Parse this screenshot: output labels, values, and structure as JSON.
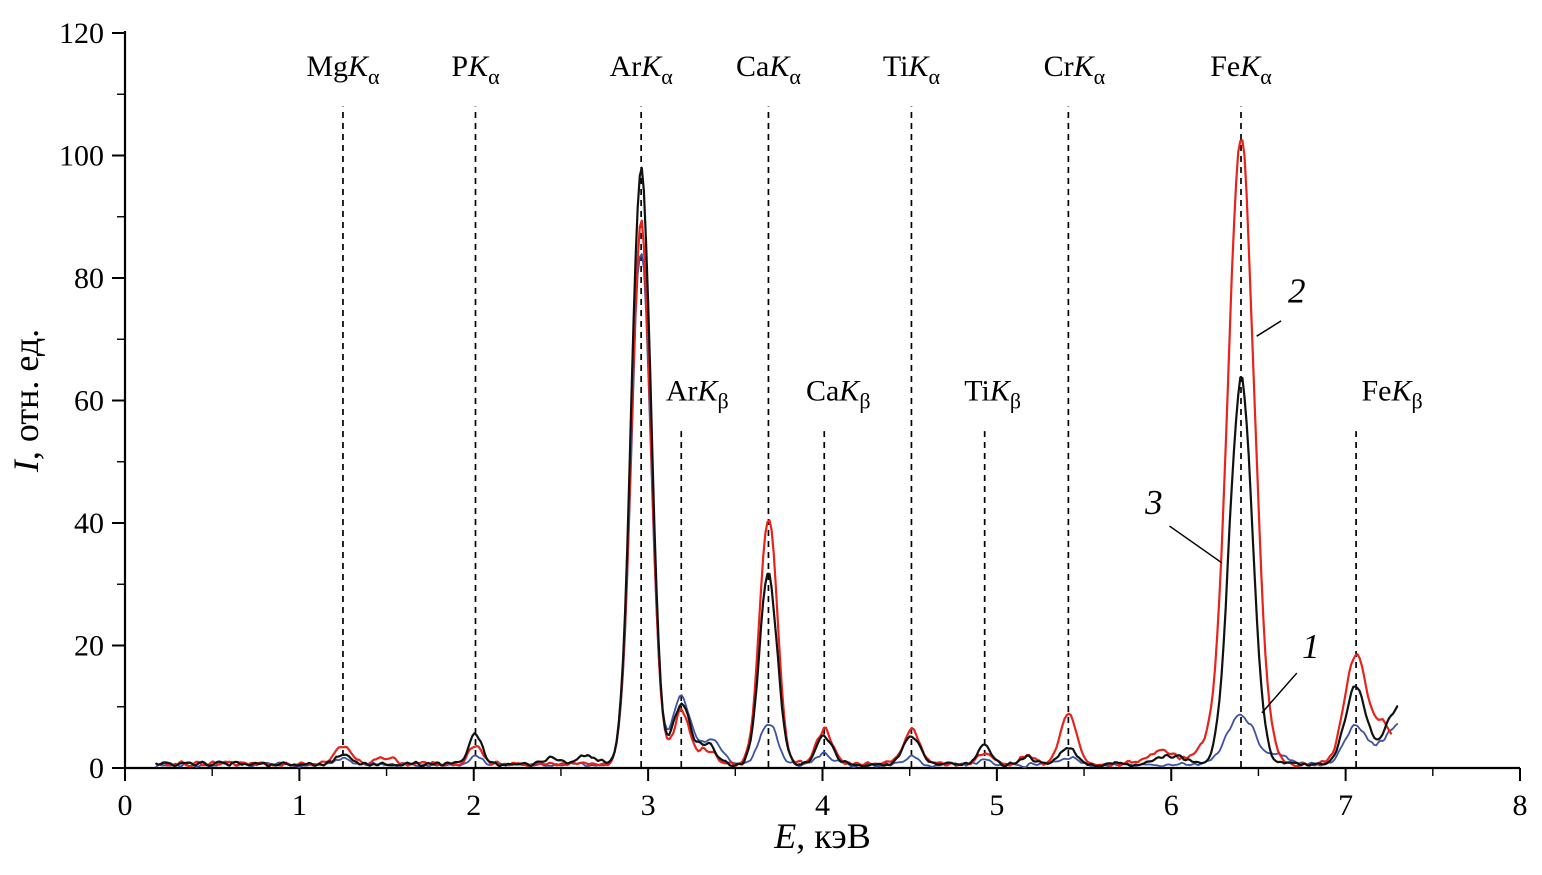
{
  "figure": {
    "description": "X-ray fluorescence spectra, intensity vs energy, three numbered curves"
  },
  "chart_data": {
    "type": "line",
    "title": "",
    "xlabel": {
      "symbol": "E",
      "rest": ", кэВ"
    },
    "ylabel": {
      "symbol": "I",
      "rest": ", отн. ед."
    },
    "xlim": [
      0,
      8
    ],
    "ylim": [
      0,
      120
    ],
    "x_major_ticks": [
      0,
      1,
      2,
      3,
      4,
      5,
      6,
      7,
      8
    ],
    "x_minor_step": 0.5,
    "y_major_ticks": [
      0,
      20,
      40,
      60,
      80,
      100,
      120
    ],
    "y_minor_step": 10,
    "grid": false,
    "legend": "numbered annotations on curves",
    "marker_rows": {
      "alpha": {
        "line_top": 108,
        "label_y": 113
      },
      "beta": {
        "line_top": 55,
        "label_y": 60
      }
    },
    "peak_markers": [
      {
        "element": "Mg",
        "line": "K",
        "sub": "α",
        "energy": 1.25,
        "row": "alpha",
        "label_dx": 0
      },
      {
        "element": "P",
        "line": "K",
        "sub": "α",
        "energy": 2.01,
        "row": "alpha",
        "label_dx": 0
      },
      {
        "element": "Ar",
        "line": "K",
        "sub": "α",
        "energy": 2.96,
        "row": "alpha",
        "label_dx": 0
      },
      {
        "element": "Ca",
        "line": "K",
        "sub": "α",
        "energy": 3.69,
        "row": "alpha",
        "label_dx": 0
      },
      {
        "element": "Ti",
        "line": "K",
        "sub": "α",
        "energy": 4.51,
        "row": "alpha",
        "label_dx": 0
      },
      {
        "element": "Cr",
        "line": "K",
        "sub": "α",
        "energy": 5.41,
        "row": "alpha",
        "label_dx": 6
      },
      {
        "element": "Fe",
        "line": "K",
        "sub": "α",
        "energy": 6.4,
        "row": "alpha",
        "label_dx": 0
      },
      {
        "element": "Ar",
        "line": "K",
        "sub": "β",
        "energy": 3.19,
        "row": "beta",
        "label_dx": 16
      },
      {
        "element": "Ca",
        "line": "K",
        "sub": "β",
        "energy": 4.01,
        "row": "beta",
        "label_dx": 14
      },
      {
        "element": "Ti",
        "line": "K",
        "sub": "β",
        "energy": 4.93,
        "row": "beta",
        "label_dx": 8
      },
      {
        "element": "Fe",
        "line": "K",
        "sub": "β",
        "energy": 7.06,
        "row": "beta",
        "label_dx": 36
      }
    ],
    "series": [
      {
        "name": "1",
        "color": "#3c53a4",
        "stroke_width": 1.8,
        "baseline": 0.5,
        "x_start": 0.18,
        "x_end": 7.3,
        "peaks": [
          [
            1.25,
            0.04,
            0.9
          ],
          [
            2.01,
            0.04,
            1.4
          ],
          [
            2.96,
            0.055,
            86.0
          ],
          [
            3.19,
            0.05,
            11.5
          ],
          [
            3.36,
            0.06,
            4.0
          ],
          [
            3.69,
            0.05,
            7.0
          ],
          [
            4.01,
            0.045,
            1.8
          ],
          [
            4.51,
            0.045,
            1.3
          ],
          [
            4.93,
            0.04,
            0.8
          ],
          [
            5.41,
            0.045,
            1.2
          ],
          [
            6.4,
            0.08,
            8.2
          ],
          [
            6.62,
            0.06,
            1.5
          ],
          [
            7.06,
            0.07,
            6.2
          ],
          [
            7.3,
            0.08,
            6.5
          ]
        ]
      },
      {
        "name": "2",
        "color": "#e8231a",
        "stroke_width": 2.2,
        "baseline": 0.7,
        "x_start": 0.18,
        "x_end": 7.26,
        "peaks": [
          [
            1.25,
            0.04,
            3.0
          ],
          [
            1.5,
            0.04,
            1.2
          ],
          [
            2.01,
            0.04,
            2.8
          ],
          [
            2.96,
            0.055,
            89.0
          ],
          [
            3.19,
            0.045,
            8.5
          ],
          [
            3.33,
            0.05,
            2.5
          ],
          [
            3.69,
            0.05,
            40.5
          ],
          [
            4.01,
            0.045,
            5.5
          ],
          [
            4.51,
            0.045,
            5.8
          ],
          [
            4.93,
            0.04,
            1.8
          ],
          [
            5.18,
            0.04,
            1.4
          ],
          [
            5.41,
            0.045,
            8.2
          ],
          [
            5.95,
            0.07,
            2.2
          ],
          [
            6.18,
            0.06,
            2.4
          ],
          [
            6.4,
            0.075,
            103.0
          ],
          [
            7.06,
            0.065,
            17.5
          ],
          [
            7.22,
            0.05,
            6.0
          ]
        ]
      },
      {
        "name": "3",
        "color": "#111111",
        "stroke_width": 2.2,
        "baseline": 0.6,
        "x_start": 0.18,
        "x_end": 7.3,
        "peaks": [
          [
            1.25,
            0.04,
            1.8
          ],
          [
            2.01,
            0.04,
            4.8
          ],
          [
            2.45,
            0.05,
            0.8
          ],
          [
            2.65,
            0.05,
            1.3
          ],
          [
            2.96,
            0.055,
            99.5
          ],
          [
            3.19,
            0.045,
            10.0
          ],
          [
            3.33,
            0.05,
            3.5
          ],
          [
            3.69,
            0.05,
            31.5
          ],
          [
            4.01,
            0.045,
            4.6
          ],
          [
            4.51,
            0.045,
            4.8
          ],
          [
            4.93,
            0.04,
            3.2
          ],
          [
            5.18,
            0.04,
            1.2
          ],
          [
            5.41,
            0.045,
            2.8
          ],
          [
            6.0,
            0.08,
            1.4
          ],
          [
            6.4,
            0.065,
            63.5
          ],
          [
            7.06,
            0.06,
            12.8
          ],
          [
            7.3,
            0.07,
            9.5
          ]
        ]
      }
    ],
    "annotations": [
      {
        "label": "2",
        "x": 6.72,
        "y": 76.0,
        "lx1": 6.63,
        "ly1": 73.0,
        "lx2": 6.49,
        "ly2": 70.5
      },
      {
        "label": "3",
        "x": 5.9,
        "y": 41.5,
        "lx1": 5.99,
        "ly1": 39.5,
        "lx2": 6.29,
        "ly2": 33.5
      },
      {
        "label": "1",
        "x": 6.8,
        "y": 18.0,
        "lx1": 6.72,
        "ly1": 15.5,
        "lx2": 6.52,
        "ly2": 9.0
      }
    ]
  }
}
